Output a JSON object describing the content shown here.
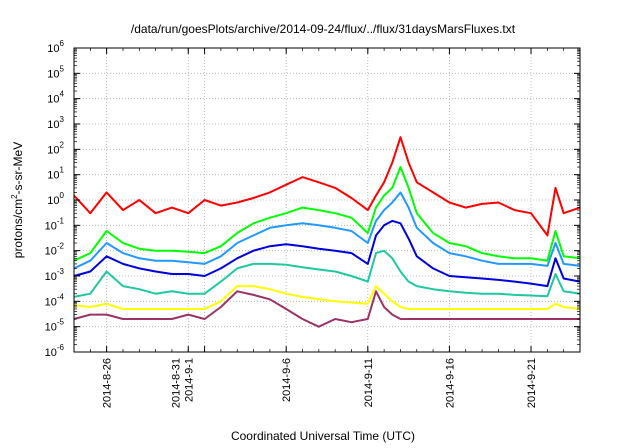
{
  "chart_data": {
    "type": "line",
    "title": "/data/run/goesPlots/archive/2014-09-24/flux/../flux/31daysMarsFluxes.txt",
    "xlabel": "Coordinated Universal Time (UTC)",
    "ylabel_parts": [
      "protons/cm",
      "2",
      "-s-sr-MeV"
    ],
    "y_scale": "log",
    "ylim": [
      1e-06,
      1000000.0
    ],
    "y_tick_labels": [
      {
        "base": "10",
        "exp": "-6",
        "value": 1e-06
      },
      {
        "base": "10",
        "exp": "-5",
        "value": 1e-05
      },
      {
        "base": "10",
        "exp": "-4",
        "value": 0.0001
      },
      {
        "base": "10",
        "exp": "-3",
        "value": 0.001
      },
      {
        "base": "10",
        "exp": "-2",
        "value": 0.01
      },
      {
        "base": "10",
        "exp": "-1",
        "value": 0.1
      },
      {
        "base": "10",
        "exp": "0",
        "value": 1
      },
      {
        "base": "10",
        "exp": "1",
        "value": 10
      },
      {
        "base": "10",
        "exp": "2",
        "value": 100
      },
      {
        "base": "10",
        "exp": "3",
        "value": 1000
      },
      {
        "base": "10",
        "exp": "4",
        "value": 10000
      },
      {
        "base": "10",
        "exp": "5",
        "value": 100000
      },
      {
        "base": "10",
        "exp": "6",
        "value": 1000000
      }
    ],
    "xlim": [
      "2014-08-24",
      "2014-09-24"
    ],
    "x_ticks": [
      {
        "date": "2014-08-26",
        "lines": [
          "2014-8-26"
        ]
      },
      {
        "date": "2014-08-31",
        "lines": [
          "2014-8-31",
          "2014-9-1"
        ]
      },
      {
        "date": "2014-09-01",
        "lines": []
      },
      {
        "date": "2014-09-06",
        "lines": [
          "2014-9-6"
        ]
      },
      {
        "date": "2014-09-11",
        "lines": [
          "2014-9-11"
        ]
      },
      {
        "date": "2014-09-16",
        "lines": [
          "2014-9-16"
        ]
      },
      {
        "date": "2014-09-21",
        "lines": [
          "2014-9-21"
        ]
      }
    ],
    "grid": true,
    "series": [
      {
        "color": "#ff0000",
        "x": [
          "2014-08-24",
          "2014-08-25",
          "2014-08-26",
          "2014-08-27",
          "2014-08-28",
          "2014-08-29",
          "2014-08-30",
          "2014-08-31",
          "2014-09-01",
          "2014-09-02",
          "2014-09-03",
          "2014-09-04",
          "2014-09-05",
          "2014-09-06",
          "2014-09-07",
          "2014-09-08",
          "2014-09-09",
          "2014-09-10",
          "2014-09-11",
          "2014-09-11T12",
          "2014-09-12",
          "2014-09-12T12",
          "2014-09-13",
          "2014-09-13T12",
          "2014-09-14",
          "2014-09-15",
          "2014-09-16",
          "2014-09-17",
          "2014-09-18",
          "2014-09-19",
          "2014-09-20",
          "2014-09-21",
          "2014-09-22",
          "2014-09-22T12",
          "2014-09-23",
          "2014-09-24"
        ],
        "y": [
          1.5,
          0.3,
          2.0,
          0.4,
          1.0,
          0.3,
          0.5,
          0.3,
          1.0,
          0.6,
          0.8,
          1.2,
          2.0,
          4.0,
          8.0,
          5.0,
          3.0,
          1.2,
          0.4,
          1.5,
          5,
          30,
          300,
          30,
          5,
          2,
          0.8,
          0.5,
          0.7,
          0.8,
          0.4,
          0.3,
          0.04,
          3,
          0.3,
          0.5
        ]
      },
      {
        "color": "#00ff00",
        "x": [
          "2014-08-24",
          "2014-08-25",
          "2014-08-26",
          "2014-08-27",
          "2014-08-28",
          "2014-08-29",
          "2014-08-30",
          "2014-08-31",
          "2014-09-01",
          "2014-09-02",
          "2014-09-03",
          "2014-09-04",
          "2014-09-05",
          "2014-09-06",
          "2014-09-07",
          "2014-09-08",
          "2014-09-09",
          "2014-09-10",
          "2014-09-11",
          "2014-09-11T12",
          "2014-09-12",
          "2014-09-12T12",
          "2014-09-13",
          "2014-09-13T12",
          "2014-09-14",
          "2014-09-15",
          "2014-09-16",
          "2014-09-17",
          "2014-09-18",
          "2014-09-19",
          "2014-09-20",
          "2014-09-21",
          "2014-09-22",
          "2014-09-22T12",
          "2014-09-23",
          "2014-09-24"
        ],
        "y": [
          0.004,
          0.008,
          0.06,
          0.02,
          0.012,
          0.01,
          0.01,
          0.009,
          0.008,
          0.015,
          0.05,
          0.12,
          0.2,
          0.3,
          0.5,
          0.4,
          0.3,
          0.2,
          0.05,
          0.5,
          1.5,
          3,
          20,
          3,
          0.3,
          0.05,
          0.02,
          0.015,
          0.008,
          0.006,
          0.005,
          0.005,
          0.004,
          0.06,
          0.006,
          0.005
        ]
      },
      {
        "color": "#2299ff",
        "x": [
          "2014-08-24",
          "2014-08-25",
          "2014-08-26",
          "2014-08-27",
          "2014-08-28",
          "2014-08-29",
          "2014-08-30",
          "2014-08-31",
          "2014-09-01",
          "2014-09-02",
          "2014-09-03",
          "2014-09-04",
          "2014-09-05",
          "2014-09-06",
          "2014-09-07",
          "2014-09-08",
          "2014-09-09",
          "2014-09-10",
          "2014-09-11",
          "2014-09-11T12",
          "2014-09-12",
          "2014-09-12T12",
          "2014-09-13",
          "2014-09-13T12",
          "2014-09-14",
          "2014-09-15",
          "2014-09-16",
          "2014-09-17",
          "2014-09-18",
          "2014-09-19",
          "2014-09-20",
          "2014-09-21",
          "2014-09-22",
          "2014-09-22T12",
          "2014-09-23",
          "2014-09-24"
        ],
        "y": [
          0.002,
          0.004,
          0.02,
          0.008,
          0.005,
          0.004,
          0.004,
          0.0035,
          0.003,
          0.006,
          0.02,
          0.04,
          0.08,
          0.1,
          0.12,
          0.1,
          0.08,
          0.06,
          0.02,
          0.15,
          0.4,
          0.8,
          2,
          0.5,
          0.08,
          0.02,
          0.008,
          0.006,
          0.004,
          0.003,
          0.003,
          0.003,
          0.0025,
          0.02,
          0.003,
          0.0025
        ]
      },
      {
        "color": "#0000dd",
        "x": [
          "2014-08-24",
          "2014-08-25",
          "2014-08-26",
          "2014-08-27",
          "2014-08-28",
          "2014-08-29",
          "2014-08-30",
          "2014-08-31",
          "2014-09-01",
          "2014-09-02",
          "2014-09-03",
          "2014-09-04",
          "2014-09-05",
          "2014-09-06",
          "2014-09-07",
          "2014-09-08",
          "2014-09-09",
          "2014-09-10",
          "2014-09-11",
          "2014-09-11T12",
          "2014-09-12",
          "2014-09-12T12",
          "2014-09-13",
          "2014-09-13T12",
          "2014-09-14",
          "2014-09-15",
          "2014-09-16",
          "2014-09-17",
          "2014-09-18",
          "2014-09-19",
          "2014-09-20",
          "2014-09-21",
          "2014-09-22",
          "2014-09-22T12",
          "2014-09-23",
          "2014-09-24"
        ],
        "y": [
          0.001,
          0.0015,
          0.006,
          0.003,
          0.002,
          0.0015,
          0.0012,
          0.0012,
          0.001,
          0.002,
          0.005,
          0.01,
          0.015,
          0.018,
          0.015,
          0.012,
          0.01,
          0.008,
          0.003,
          0.04,
          0.1,
          0.15,
          0.12,
          0.03,
          0.006,
          0.002,
          0.001,
          0.0009,
          0.0008,
          0.0007,
          0.0006,
          0.0005,
          0.0004,
          0.005,
          0.0008,
          0.0006
        ]
      },
      {
        "color": "#20c8a0",
        "x": [
          "2014-08-24",
          "2014-08-25",
          "2014-08-26",
          "2014-08-27",
          "2014-08-28",
          "2014-08-29",
          "2014-08-30",
          "2014-08-31",
          "2014-09-01",
          "2014-09-02",
          "2014-09-03",
          "2014-09-04",
          "2014-09-05",
          "2014-09-06",
          "2014-09-07",
          "2014-09-08",
          "2014-09-09",
          "2014-09-10",
          "2014-09-11",
          "2014-09-11T12",
          "2014-09-12",
          "2014-09-12T12",
          "2014-09-13",
          "2014-09-13T12",
          "2014-09-14",
          "2014-09-15",
          "2014-09-16",
          "2014-09-17",
          "2014-09-18",
          "2014-09-19",
          "2014-09-20",
          "2014-09-21",
          "2014-09-22",
          "2014-09-22T12",
          "2014-09-23",
          "2014-09-24"
        ],
        "y": [
          0.00015,
          0.0002,
          0.0015,
          0.0004,
          0.0003,
          0.0002,
          0.00025,
          0.0002,
          0.0002,
          0.0006,
          0.002,
          0.003,
          0.003,
          0.0028,
          0.0022,
          0.0018,
          0.0015,
          0.001,
          0.0006,
          0.008,
          0.01,
          0.005,
          0.0015,
          0.0006,
          0.0004,
          0.0003,
          0.00025,
          0.00022,
          0.0002,
          0.0002,
          0.00018,
          0.00017,
          0.00016,
          0.0012,
          0.00025,
          0.0002
        ]
      },
      {
        "color": "#ffff00",
        "x": [
          "2014-08-24",
          "2014-08-25",
          "2014-08-26",
          "2014-08-27",
          "2014-08-28",
          "2014-08-29",
          "2014-08-30",
          "2014-08-31",
          "2014-09-01",
          "2014-09-02",
          "2014-09-03",
          "2014-09-04",
          "2014-09-05",
          "2014-09-06",
          "2014-09-07",
          "2014-09-08",
          "2014-09-09",
          "2014-09-10",
          "2014-09-11",
          "2014-09-11T12",
          "2014-09-12",
          "2014-09-12T12",
          "2014-09-13",
          "2014-09-13T12",
          "2014-09-14",
          "2014-09-15",
          "2014-09-16",
          "2014-09-17",
          "2014-09-18",
          "2014-09-19",
          "2014-09-20",
          "2014-09-21",
          "2014-09-22",
          "2014-09-22T12",
          "2014-09-23",
          "2014-09-24"
        ],
        "y": [
          7e-05,
          6e-05,
          8e-05,
          5e-05,
          5e-05,
          5e-05,
          5e-05,
          5e-05,
          5e-05,
          0.0001,
          0.0004,
          0.0004,
          0.0003,
          0.0002,
          0.00015,
          0.00012,
          0.0001,
          9e-05,
          8e-05,
          0.0004,
          0.0002,
          0.0001,
          6e-05,
          5e-05,
          5e-05,
          5e-05,
          5e-05,
          5e-05,
          5e-05,
          5e-05,
          5e-05,
          5e-05,
          5e-05,
          8e-05,
          6e-05,
          5e-05
        ]
      },
      {
        "color": "#993366",
        "x": [
          "2014-08-24",
          "2014-08-25",
          "2014-08-26",
          "2014-08-27",
          "2014-08-28",
          "2014-08-29",
          "2014-08-30",
          "2014-08-31",
          "2014-09-01",
          "2014-09-02",
          "2014-09-03",
          "2014-09-04",
          "2014-09-05",
          "2014-09-06",
          "2014-09-07",
          "2014-09-08",
          "2014-09-09",
          "2014-09-10",
          "2014-09-11",
          "2014-09-11T12",
          "2014-09-12",
          "2014-09-12T12",
          "2014-09-13",
          "2014-09-13T12",
          "2014-09-14",
          "2014-09-15",
          "2014-09-16",
          "2014-09-17",
          "2014-09-18",
          "2014-09-19",
          "2014-09-20",
          "2014-09-21",
          "2014-09-22",
          "2014-09-22T12",
          "2014-09-23",
          "2014-09-24"
        ],
        "y": [
          2e-05,
          3e-05,
          3e-05,
          2e-05,
          2e-05,
          2e-05,
          2e-05,
          3e-05,
          2e-05,
          6e-05,
          0.00025,
          0.00018,
          0.00012,
          5e-05,
          2e-05,
          1e-05,
          2e-05,
          1.5e-05,
          2e-05,
          0.00025,
          6e-05,
          3e-05,
          2e-05,
          2e-05,
          2e-05,
          2e-05,
          2e-05,
          2e-05,
          2e-05,
          2e-05,
          2e-05,
          2e-05,
          2e-05,
          2e-05,
          2e-05,
          2e-05
        ]
      }
    ]
  }
}
